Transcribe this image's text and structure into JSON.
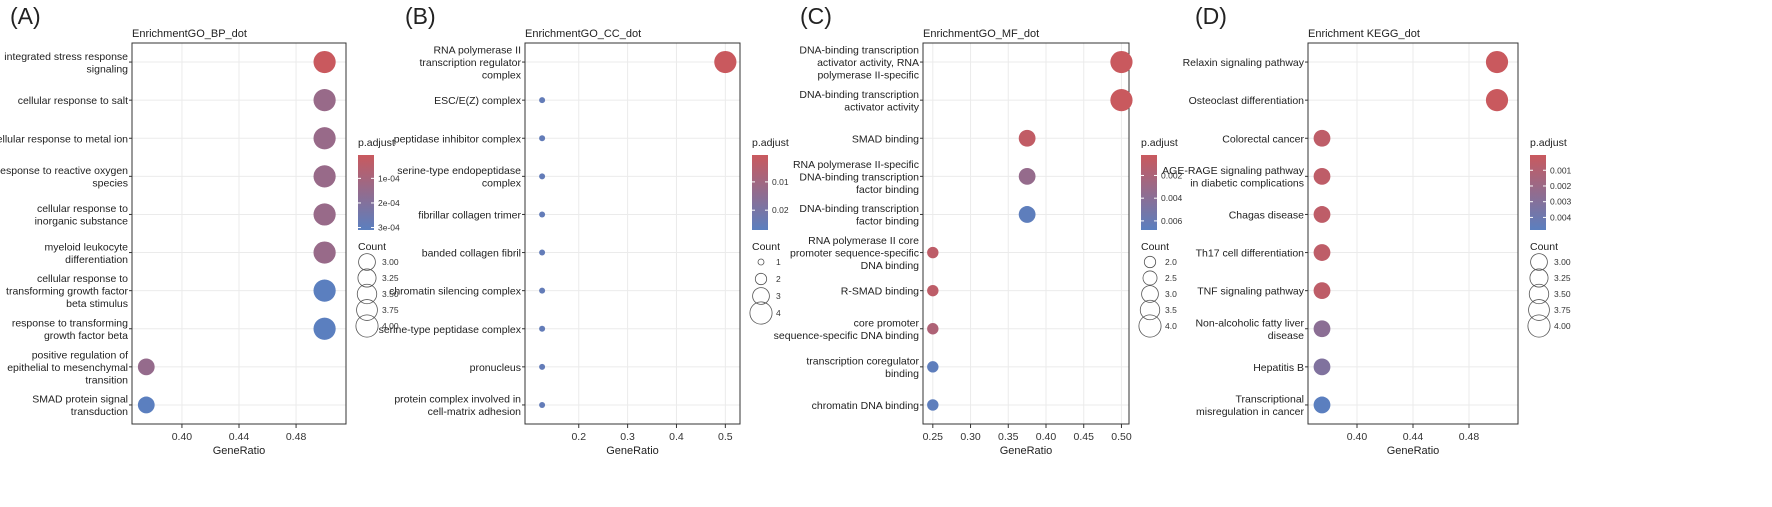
{
  "figure": {
    "common": {
      "legend_color_title": "p.adjust",
      "legend_size_title": "Count"
    },
    "gradient": {
      "low": "#c9595e",
      "high": "#5b7fbf"
    }
  },
  "chart_data": [
    {
      "panel_label": "(A)",
      "title": "EnrichmentGO_BP_dot",
      "type": "scatter",
      "xlabel": "GeneRatio",
      "xlim": [
        0.365,
        0.515
      ],
      "xticks": [
        0.4,
        0.44,
        0.48
      ],
      "xtick_labels": [
        "0.40",
        "0.44",
        "0.48"
      ],
      "categories": [
        {
          "label": [
            "integrated stress response",
            "signaling"
          ],
          "x": 0.5,
          "count": 4,
          "padj": 5e-06
        },
        {
          "label": [
            "cellular response to salt"
          ],
          "x": 0.5,
          "count": 4,
          "padj": 0.00014
        },
        {
          "label": [
            "cellular response to metal ion"
          ],
          "x": 0.5,
          "count": 4,
          "padj": 0.00014
        },
        {
          "label": [
            "response to reactive oxygen",
            "species"
          ],
          "x": 0.5,
          "count": 4,
          "padj": 0.00014
        },
        {
          "label": [
            "cellular response to",
            "inorganic substance"
          ],
          "x": 0.5,
          "count": 4,
          "padj": 0.00014
        },
        {
          "label": [
            "myeloid leukocyte",
            "differentiation"
          ],
          "x": 0.5,
          "count": 4,
          "padj": 0.00014
        },
        {
          "label": [
            "cellular response to",
            "transforming growth factor",
            "beta stimulus"
          ],
          "x": 0.5,
          "count": 4,
          "padj": 0.00031
        },
        {
          "label": [
            "response to transforming",
            "growth factor beta"
          ],
          "x": 0.5,
          "count": 4,
          "padj": 0.00031
        },
        {
          "label": [
            "positive regulation of",
            "epithelial to mesenchymal",
            "transition"
          ],
          "x": 0.375,
          "count": 3,
          "padj": 0.00015
        },
        {
          "label": [
            "SMAD protein signal",
            "transduction"
          ],
          "x": 0.375,
          "count": 3,
          "padj": 0.00031
        }
      ],
      "legend": {
        "color_domain": [
          5e-06,
          0.00031
        ],
        "color_ticks": [
          0.0001,
          0.0002,
          0.0003
        ],
        "color_tick_labels": [
          "1e-04",
          "2e-04",
          "3e-04"
        ],
        "count_ticks": [
          3.0,
          3.25,
          3.5,
          3.75,
          4.0
        ],
        "count_tick_labels": [
          "3.00",
          "3.25",
          "3.50",
          "3.75",
          "4.00"
        ],
        "count_range": [
          1,
          4
        ]
      }
    },
    {
      "panel_label": "(B)",
      "title": "EnrichmentGO_CC_dot",
      "type": "scatter",
      "xlabel": "GeneRatio",
      "xlim": [
        0.09,
        0.53
      ],
      "xticks": [
        0.2,
        0.3,
        0.4,
        0.5
      ],
      "xtick_labels": [
        "0.2",
        "0.3",
        "0.4",
        "0.5"
      ],
      "categories": [
        {
          "label": [
            "RNA polymerase II",
            "transcription regulator",
            "complex"
          ],
          "x": 0.5,
          "count": 4,
          "padj": 0.0005
        },
        {
          "label": [
            "ESC/E(Z) complex"
          ],
          "x": 0.125,
          "count": 1,
          "padj": 0.025
        },
        {
          "label": [
            "peptidase inhibitor complex"
          ],
          "x": 0.125,
          "count": 1,
          "padj": 0.025
        },
        {
          "label": [
            "serine-type endopeptidase",
            "complex"
          ],
          "x": 0.125,
          "count": 1,
          "padj": 0.025
        },
        {
          "label": [
            "fibrillar collagen trimer"
          ],
          "x": 0.125,
          "count": 1,
          "padj": 0.025
        },
        {
          "label": [
            "banded collagen fibril"
          ],
          "x": 0.125,
          "count": 1,
          "padj": 0.025
        },
        {
          "label": [
            "chromatin silencing complex"
          ],
          "x": 0.125,
          "count": 1,
          "padj": 0.025
        },
        {
          "label": [
            "serine-type peptidase complex"
          ],
          "x": 0.125,
          "count": 1,
          "padj": 0.025
        },
        {
          "label": [
            "pronucleus"
          ],
          "x": 0.125,
          "count": 1,
          "padj": 0.025
        },
        {
          "label": [
            "protein complex involved in",
            "cell-matrix adhesion"
          ],
          "x": 0.125,
          "count": 1,
          "padj": 0.025
        }
      ],
      "legend": {
        "color_domain": [
          0.0005,
          0.027
        ],
        "color_ticks": [
          0.01,
          0.02
        ],
        "color_tick_labels": [
          "0.01",
          "0.02"
        ],
        "count_ticks": [
          1,
          2,
          3,
          4
        ],
        "count_tick_labels": [
          "1",
          "2",
          "3",
          "4"
        ],
        "count_range": [
          1,
          4
        ]
      }
    },
    {
      "panel_label": "(C)",
      "title": "EnrichmentGO_MF_dot",
      "type": "scatter",
      "xlabel": "GeneRatio",
      "xlim": [
        0.237,
        0.51
      ],
      "xticks": [
        0.25,
        0.3,
        0.35,
        0.4,
        0.45,
        0.5
      ],
      "xtick_labels": [
        "0.25",
        "0.30",
        "0.35",
        "0.40",
        "0.45",
        "0.50"
      ],
      "categories": [
        {
          "label": [
            "DNA-binding transcription",
            "activator activity, RNA",
            "polymerase II-specific"
          ],
          "x": 0.5,
          "count": 4,
          "padj": 0.0002
        },
        {
          "label": [
            "DNA-binding transcription",
            "activator activity"
          ],
          "x": 0.5,
          "count": 4,
          "padj": 0.0002
        },
        {
          "label": [
            "SMAD binding"
          ],
          "x": 0.375,
          "count": 3,
          "padj": 0.0007
        },
        {
          "label": [
            "RNA polymerase II-specific",
            "DNA-binding transcription",
            "factor binding"
          ],
          "x": 0.375,
          "count": 3,
          "padj": 0.0033
        },
        {
          "label": [
            "DNA-binding transcription",
            "factor binding"
          ],
          "x": 0.375,
          "count": 3,
          "padj": 0.0066
        },
        {
          "label": [
            "RNA polymerase II core",
            "promoter sequence-specific",
            "DNA binding"
          ],
          "x": 0.25,
          "count": 2,
          "padj": 0.0009
        },
        {
          "label": [
            "R-SMAD binding"
          ],
          "x": 0.25,
          "count": 2,
          "padj": 0.0009
        },
        {
          "label": [
            "core promoter",
            "sequence-specific DNA binding"
          ],
          "x": 0.25,
          "count": 2,
          "padj": 0.0018
        },
        {
          "label": [
            "transcription coregulator",
            "binding"
          ],
          "x": 0.25,
          "count": 2,
          "padj": 0.0066
        },
        {
          "label": [
            "chromatin DNA binding"
          ],
          "x": 0.25,
          "count": 2,
          "padj": 0.0066
        }
      ],
      "legend": {
        "color_domain": [
          0.0002,
          0.0068
        ],
        "color_ticks": [
          0.002,
          0.004,
          0.006
        ],
        "color_tick_labels": [
          "0.002",
          "0.004",
          "0.006"
        ],
        "count_ticks": [
          2.0,
          2.5,
          3.0,
          3.5,
          4.0
        ],
        "count_tick_labels": [
          "2.0",
          "2.5",
          "3.0",
          "3.5",
          "4.0"
        ],
        "count_range": [
          1,
          4
        ]
      }
    },
    {
      "panel_label": "(D)",
      "title": "Enrichment KEGG_dot",
      "type": "scatter",
      "xlabel": "GeneRatio",
      "xlim": [
        0.365,
        0.515
      ],
      "xticks": [
        0.4,
        0.44,
        0.48
      ],
      "xtick_labels": [
        "0.40",
        "0.44",
        "0.48"
      ],
      "categories": [
        {
          "label": [
            "Relaxin signaling pathway"
          ],
          "x": 0.5,
          "count": 4,
          "padj": 3e-05
        },
        {
          "label": [
            "Osteoclast differentiation"
          ],
          "x": 0.5,
          "count": 4,
          "padj": 3e-05
        },
        {
          "label": [
            "Colorectal cancer"
          ],
          "x": 0.375,
          "count": 3,
          "padj": 0.0005
        },
        {
          "label": [
            "AGE-RAGE signaling pathway",
            "in diabetic complications"
          ],
          "x": 0.375,
          "count": 3,
          "padj": 0.0005
        },
        {
          "label": [
            "Chagas disease"
          ],
          "x": 0.375,
          "count": 3,
          "padj": 0.0005
        },
        {
          "label": [
            "Th17 cell differentiation"
          ],
          "x": 0.375,
          "count": 3,
          "padj": 0.0005
        },
        {
          "label": [
            "TNF signaling pathway"
          ],
          "x": 0.375,
          "count": 3,
          "padj": 0.0005
        },
        {
          "label": [
            "Non-alcoholic fatty liver",
            "disease"
          ],
          "x": 0.375,
          "count": 3,
          "padj": 0.0027
        },
        {
          "label": [
            "Hepatitis B"
          ],
          "x": 0.375,
          "count": 3,
          "padj": 0.0032
        },
        {
          "label": [
            "Transcriptional",
            "misregulation in cancer"
          ],
          "x": 0.375,
          "count": 3,
          "padj": 0.0048
        }
      ],
      "legend": {
        "color_domain": [
          3e-05,
          0.0048
        ],
        "color_ticks": [
          0.001,
          0.002,
          0.003,
          0.004
        ],
        "color_tick_labels": [
          "0.001",
          "0.002",
          "0.003",
          "0.004"
        ],
        "count_ticks": [
          3.0,
          3.25,
          3.5,
          3.75,
          4.0
        ],
        "count_tick_labels": [
          "3.00",
          "3.25",
          "3.50",
          "3.75",
          "4.00"
        ],
        "count_range": [
          1,
          4
        ]
      }
    }
  ]
}
